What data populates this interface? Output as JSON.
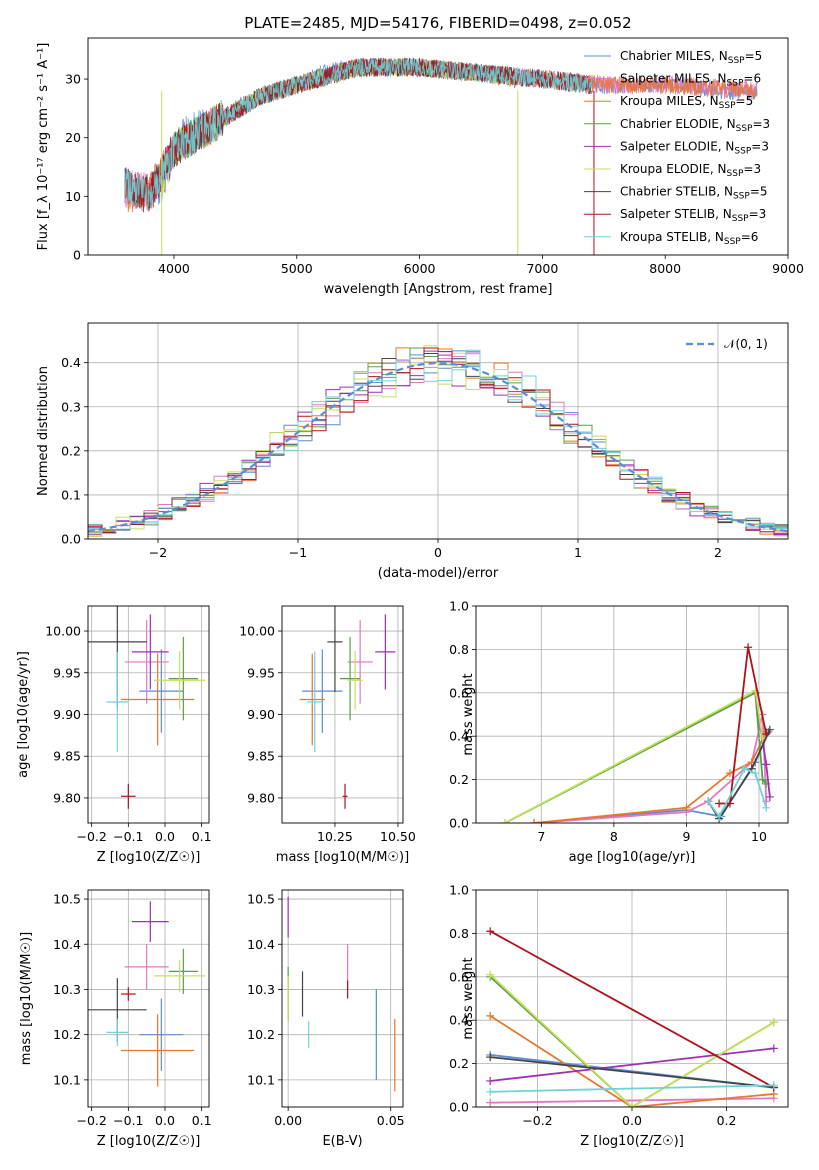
{
  "title": "PLATE=2485, MJD=54176, FIBERID=0498, z=0.052",
  "chart_data": [
    {
      "type": "line",
      "name": "spectrum",
      "xlabel": "wavelength [Angstrom, rest frame]",
      "ylabel": "Flux [f_λ 10⁻¹⁷ erg cm⁻² s⁻¹ A⁻¹]",
      "xlim": [
        3300,
        9000
      ],
      "ylim": [
        0,
        37
      ],
      "xticks": [
        4000,
        5000,
        6000,
        7000,
        8000,
        9000
      ],
      "yticks": [
        0,
        10,
        20,
        30
      ],
      "legend_position": "top-right",
      "series": [
        {
          "name": "Chabrier MILES, N_SSP=5",
          "color": "#5b8cd6",
          "x": [
            3600,
            3700,
            3800,
            3900,
            4000,
            4100,
            4300,
            4500,
            4700,
            5000,
            5200,
            5500,
            6000,
            6500,
            7000,
            7500,
            8000,
            8500,
            8750
          ],
          "y": [
            12,
            10,
            11,
            12,
            18,
            21,
            22,
            25,
            27,
            29,
            31,
            32,
            32,
            31,
            30,
            29,
            29,
            28,
            28
          ]
        },
        {
          "name": "Salpeter MILES, N_SSP=6",
          "color": "#e377c2",
          "x": [
            3600,
            3800,
            4000,
            4300,
            4700,
            5000,
            5500,
            6000,
            6500,
            7000,
            7500,
            8000,
            8750
          ],
          "y": [
            11,
            11,
            18,
            22,
            27,
            29,
            32,
            32,
            31,
            30,
            29,
            29,
            28
          ]
        },
        {
          "name": "Kroupa MILES, N_SSP=5",
          "color": "#e8762d",
          "x": [
            3600,
            3800,
            4000,
            4300,
            4700,
            5000,
            5500,
            6000,
            6500,
            7000,
            7500,
            8000,
            8750
          ],
          "y": [
            10,
            11,
            18,
            22,
            27,
            29,
            32,
            32,
            31,
            30,
            29,
            29,
            28
          ]
        },
        {
          "name": "Chabrier ELODIE, N_SSP=3",
          "color": "#5a9e4a",
          "x": [
            3900,
            4000,
            4300,
            4700,
            5000,
            5500,
            6000,
            6500,
            6800
          ],
          "y": [
            12,
            18,
            22,
            27,
            29,
            32,
            32,
            31,
            30
          ]
        },
        {
          "name": "Salpeter ELODIE, N_SSP=3",
          "color": "#9b30b0",
          "x": [
            3900,
            4000,
            4300,
            4700,
            5000,
            5500,
            6000,
            6500,
            6800
          ],
          "y": [
            12,
            18,
            22,
            27,
            29,
            32,
            32,
            31,
            30
          ]
        },
        {
          "name": "Kroupa ELODIE, N_SSP=3",
          "color": "#c5e05a",
          "x": [
            3900,
            4000,
            4300,
            4700,
            5000,
            5500,
            6000,
            6500,
            6800
          ],
          "y": [
            12,
            18,
            22,
            27,
            29,
            32,
            32,
            31,
            30
          ]
        },
        {
          "name": "Chabrier STELIB, N_SSP=5",
          "color": "#444444",
          "x": [
            3600,
            3800,
            4000,
            4300,
            4700,
            5000,
            5500,
            6000,
            6500,
            7000,
            7400
          ],
          "y": [
            12,
            10,
            18,
            22,
            27,
            29,
            32,
            32,
            31,
            30,
            29
          ]
        },
        {
          "name": "Salpeter STELIB, N_SSP=3",
          "color": "#b0121b",
          "x": [
            3600,
            3800,
            4000,
            4300,
            4700,
            5000,
            5500,
            6000,
            6500,
            7000,
            7400
          ],
          "y": [
            12,
            10,
            18,
            22,
            27,
            29,
            32,
            32,
            31,
            30,
            29
          ]
        },
        {
          "name": "Kroupa STELIB, N_SSP=6",
          "color": "#6ed3d9",
          "x": [
            3600,
            3800,
            4000,
            4300,
            4700,
            5000,
            5500,
            6000,
            6500,
            7000,
            7400
          ],
          "y": [
            12,
            10,
            18,
            22,
            27,
            29,
            32,
            32,
            31,
            30,
            29
          ]
        }
      ]
    },
    {
      "type": "histogram",
      "name": "residuals",
      "xlabel": "(data-model)/error",
      "ylabel": "Normed distribution",
      "xlim": [
        -2.5,
        2.5
      ],
      "ylim": [
        0,
        0.49
      ],
      "xticks": [
        -2,
        -1,
        0,
        1,
        2
      ],
      "yticks": [
        0.0,
        0.1,
        0.2,
        0.3,
        0.4
      ],
      "legend": [
        {
          "name": "𝒩(0, 1)",
          "style": "dashed",
          "color": "#5b8cd6"
        }
      ],
      "legend_position": "top-right",
      "bin_width": 0.1
    },
    {
      "type": "scatter",
      "name": "age-vs-Z",
      "xlabel": "Z [log10(Z/Z☉)]",
      "ylabel": "age  [log10(age/yr)]",
      "xlim": [
        -0.21,
        0.12
      ],
      "ylim": [
        9.77,
        10.03
      ],
      "xticks": [
        -0.2,
        -0.1,
        0.0,
        0.1
      ],
      "yticks": [
        9.8,
        9.85,
        9.9,
        9.95,
        10.0
      ],
      "points": [
        {
          "series": "Chabrier MILES",
          "x": -0.01,
          "xerr": 0.06,
          "y": 9.928,
          "yerr": 0.05
        },
        {
          "series": "Salpeter MILES",
          "x": -0.05,
          "xerr": 0.06,
          "y": 9.963,
          "yerr": 0.05
        },
        {
          "series": "Kroupa MILES",
          "x": -0.02,
          "xerr": 0.1,
          "y": 9.918,
          "yerr": 0.055
        },
        {
          "series": "Chabrier ELODIE",
          "x": 0.05,
          "xerr": 0.04,
          "y": 9.943,
          "yerr": 0.05
        },
        {
          "series": "Salpeter ELODIE",
          "x": -0.04,
          "xerr": 0.05,
          "y": 9.975,
          "yerr": 0.045
        },
        {
          "series": "Kroupa ELODIE",
          "x": 0.04,
          "xerr": 0.07,
          "y": 9.941,
          "yerr": 0.035
        },
        {
          "series": "Chabrier STELIB",
          "x": -0.13,
          "xerr": 0.08,
          "y": 9.987,
          "yerr": 0.08
        },
        {
          "series": "Salpeter STELIB",
          "x": -0.1,
          "xerr": 0.02,
          "y": 9.802,
          "yerr": 0.015
        },
        {
          "series": "Kroupa STELIB",
          "x": -0.13,
          "xerr": 0.03,
          "y": 9.915,
          "yerr": 0.06
        }
      ]
    },
    {
      "type": "scatter",
      "name": "age-vs-mass",
      "xlabel": "mass [log10(M/M☉)]",
      "ylabel": "",
      "xlim": [
        10.04,
        10.52
      ],
      "ylim": [
        9.77,
        10.03
      ],
      "xticks": [
        10.25,
        10.5
      ],
      "yticks": [
        9.8,
        9.85,
        9.9,
        9.95,
        10.0
      ],
      "points": [
        {
          "series": "Chabrier MILES",
          "x": 10.2,
          "xerr": 0.08,
          "y": 9.928,
          "yerr": 0.05
        },
        {
          "series": "Salpeter MILES",
          "x": 10.35,
          "xerr": 0.05,
          "y": 9.963,
          "yerr": 0.05
        },
        {
          "series": "Kroupa MILES",
          "x": 10.16,
          "xerr": 0.05,
          "y": 9.918,
          "yerr": 0.055
        },
        {
          "series": "Chabrier ELODIE",
          "x": 10.31,
          "xerr": 0.04,
          "y": 9.943,
          "yerr": 0.05
        },
        {
          "series": "Salpeter ELODIE",
          "x": 10.45,
          "xerr": 0.04,
          "y": 9.975,
          "yerr": 0.045
        },
        {
          "series": "Kroupa ELODIE",
          "x": 10.33,
          "xerr": 0.03,
          "y": 9.941,
          "yerr": 0.035
        },
        {
          "series": "Chabrier STELIB",
          "x": 10.25,
          "xerr": 0.03,
          "y": 9.987,
          "yerr": 0.06
        },
        {
          "series": "Salpeter STELIB",
          "x": 10.29,
          "xerr": 0.01,
          "y": 9.802,
          "yerr": 0.015
        },
        {
          "series": "Kroupa STELIB",
          "x": 10.17,
          "xerr": 0.03,
          "y": 9.915,
          "yerr": 0.06
        }
      ]
    },
    {
      "type": "line",
      "name": "mass-weight-vs-age",
      "xlabel": "age  [log10(age/yr)]",
      "ylabel": "mass weight",
      "xlim": [
        6.1,
        10.4
      ],
      "ylim": [
        0,
        1.0
      ],
      "xticks": [
        7,
        8,
        9,
        10
      ],
      "yticks": [
        0.0,
        0.2,
        0.4,
        0.6,
        0.8,
        1.0
      ],
      "series": [
        {
          "name": "Chabrier MILES",
          "x": [
            6.9,
            9.0,
            9.48,
            9.95,
            10.13
          ],
          "y": [
            0.0,
            0.06,
            0.03,
            0.28,
            0.42
          ]
        },
        {
          "name": "Salpeter MILES",
          "x": [
            6.9,
            9.0,
            9.3,
            9.9,
            10.05,
            10.1
          ],
          "y": [
            0.0,
            0.05,
            0.1,
            0.28,
            0.5,
            0.1
          ]
        },
        {
          "name": "Kroupa MILES",
          "x": [
            6.9,
            9.0,
            9.6,
            9.9,
            10.1
          ],
          "y": [
            0.0,
            0.07,
            0.23,
            0.28,
            0.42
          ]
        },
        {
          "name": "Chabrier ELODIE",
          "x": [
            6.5,
            9.95,
            10.05,
            10.1
          ],
          "y": [
            0.0,
            0.6,
            0.2,
            0.18
          ]
        },
        {
          "name": "Salpeter ELODIE",
          "x": [
            9.95,
            10.1,
            10.15
          ],
          "y": [
            0.6,
            0.27,
            0.12
          ]
        },
        {
          "name": "Kroupa ELODIE",
          "x": [
            6.5,
            9.95,
            10.05
          ],
          "y": [
            0.0,
            0.61,
            0.39
          ]
        },
        {
          "name": "Chabrier STELIB",
          "x": [
            9.3,
            9.45,
            9.9,
            10.15
          ],
          "y": [
            0.1,
            0.02,
            0.25,
            0.43
          ]
        },
        {
          "name": "Salpeter STELIB",
          "x": [
            9.45,
            9.6,
            9.85,
            10.1
          ],
          "y": [
            0.09,
            0.09,
            0.81,
            0.41
          ]
        },
        {
          "name": "Kroupa STELIB",
          "x": [
            9.3,
            9.45,
            9.8,
            9.95,
            10.1
          ],
          "y": [
            0.1,
            0.03,
            0.25,
            0.23,
            0.07
          ]
        }
      ]
    },
    {
      "type": "scatter",
      "name": "mass-vs-Z",
      "xlabel": "Z [log10(Z/Z☉)]",
      "ylabel": "mass [log10(M/M☉)]",
      "xlim": [
        -0.21,
        0.12
      ],
      "ylim": [
        10.04,
        10.52
      ],
      "xticks": [
        -0.2,
        -0.1,
        0.0,
        0.1
      ],
      "yticks": [
        10.1,
        10.2,
        10.3,
        10.4,
        10.5
      ],
      "points": [
        {
          "series": "Chabrier MILES",
          "x": -0.01,
          "xerr": 0.06,
          "y": 10.2,
          "yerr": 0.08
        },
        {
          "series": "Salpeter MILES",
          "x": -0.05,
          "xerr": 0.06,
          "y": 10.35,
          "yerr": 0.05
        },
        {
          "series": "Kroupa MILES",
          "x": -0.02,
          "xerr": 0.1,
          "y": 10.165,
          "yerr": 0.08
        },
        {
          "series": "Chabrier ELODIE",
          "x": 0.05,
          "xerr": 0.04,
          "y": 10.34,
          "yerr": 0.05
        },
        {
          "series": "Salpeter ELODIE",
          "x": -0.04,
          "xerr": 0.05,
          "y": 10.45,
          "yerr": 0.045
        },
        {
          "series": "Kroupa ELODIE",
          "x": 0.04,
          "xerr": 0.07,
          "y": 10.33,
          "yerr": 0.035
        },
        {
          "series": "Chabrier STELIB",
          "x": -0.13,
          "xerr": 0.08,
          "y": 10.255,
          "yerr": 0.07
        },
        {
          "series": "Salpeter STELIB",
          "x": -0.1,
          "xerr": 0.02,
          "y": 10.29,
          "yerr": 0.015
        },
        {
          "series": "Kroupa STELIB",
          "x": -0.13,
          "xerr": 0.03,
          "y": 10.205,
          "yerr": 0.03
        }
      ]
    },
    {
      "type": "scatter",
      "name": "mass-vs-ebv",
      "xlabel": "E(B-V)",
      "ylabel": "",
      "xlim": [
        -0.003,
        0.056
      ],
      "ylim": [
        10.04,
        10.52
      ],
      "xticks": [
        0.0,
        0.05
      ],
      "yticks": [
        10.1,
        10.2,
        10.3,
        10.4,
        10.5
      ],
      "points": [
        {
          "series": "Chabrier MILES",
          "x": 0.043,
          "y": 10.2,
          "yerr": 0.1
        },
        {
          "series": "Salpeter MILES",
          "x": 0.029,
          "y": 10.35,
          "yerr": 0.05
        },
        {
          "series": "Kroupa MILES",
          "x": 0.052,
          "y": 10.155,
          "yerr": 0.08
        },
        {
          "series": "Chabrier ELODIE",
          "x": 0.0,
          "y": 10.29,
          "yerr": 0.06
        },
        {
          "series": "Salpeter ELODIE",
          "x": 0.0,
          "y": 10.46,
          "yerr": 0.045
        },
        {
          "series": "Kroupa ELODIE",
          "x": 0.0,
          "y": 10.28,
          "yerr": 0.05
        },
        {
          "series": "Chabrier STELIB",
          "x": 0.007,
          "y": 10.29,
          "yerr": 0.05
        },
        {
          "series": "Salpeter STELIB",
          "x": 0.029,
          "y": 10.3,
          "yerr": 0.02
        },
        {
          "series": "Kroupa STELIB",
          "x": 0.01,
          "y": 10.2,
          "yerr": 0.03
        }
      ]
    },
    {
      "type": "line",
      "name": "mass-weight-vs-Z",
      "xlabel": "Z [log10(Z/Z☉)]",
      "ylabel": "mass weight",
      "xlim": [
        -0.33,
        0.33
      ],
      "ylim": [
        0,
        1.0
      ],
      "xticks": [
        -0.2,
        0.0,
        0.2
      ],
      "yticks": [
        0.0,
        0.2,
        0.4,
        0.6,
        0.8,
        1.0
      ],
      "series": [
        {
          "name": "Chabrier MILES",
          "x": [
            -0.3,
            0.3
          ],
          "y": [
            0.24,
            0.09
          ]
        },
        {
          "name": "Salpeter MILES",
          "x": [
            -0.3,
            0.3
          ],
          "y": [
            0.02,
            0.04
          ]
        },
        {
          "name": "Kroupa MILES",
          "x": [
            -0.3,
            0.0,
            0.3
          ],
          "y": [
            0.42,
            0.0,
            0.06
          ]
        },
        {
          "name": "Chabrier ELODIE",
          "x": [
            -0.3,
            0.0,
            0.3
          ],
          "y": [
            0.6,
            0.0,
            0.39
          ]
        },
        {
          "name": "Salpeter ELODIE",
          "x": [
            -0.3,
            0.3
          ],
          "y": [
            0.12,
            0.27
          ]
        },
        {
          "name": "Kroupa ELODIE",
          "x": [
            -0.3,
            0.0,
            0.3
          ],
          "y": [
            0.61,
            0.0,
            0.39
          ]
        },
        {
          "name": "Chabrier STELIB",
          "x": [
            -0.3,
            0.3
          ],
          "y": [
            0.23,
            0.09
          ]
        },
        {
          "name": "Salpeter STELIB",
          "x": [
            -0.3,
            0.3
          ],
          "y": [
            0.81,
            0.09
          ]
        },
        {
          "name": "Kroupa STELIB",
          "x": [
            -0.3,
            0.3
          ],
          "y": [
            0.07,
            0.1
          ]
        }
      ]
    }
  ]
}
